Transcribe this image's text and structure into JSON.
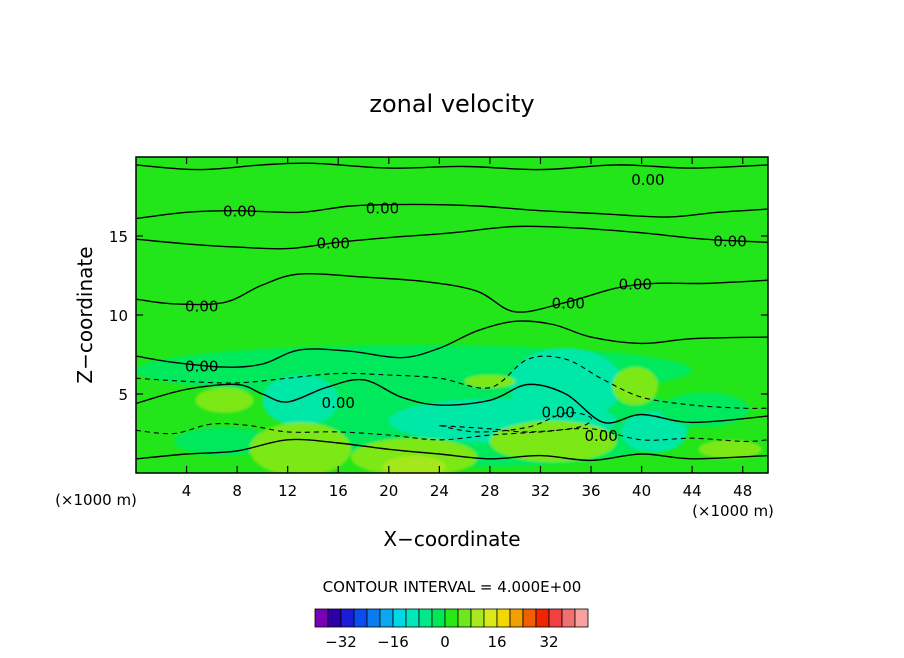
{
  "chart_data": {
    "type": "heatmap",
    "title": "zonal velocity",
    "xlabel": "X−coordinate",
    "ylabel": "Z−coordinate",
    "x_unit_left": "(×1000 m)",
    "x_unit_right": "(×1000 m)",
    "xlim": [
      0,
      50
    ],
    "ylim": [
      0,
      20
    ],
    "x_ticks": [
      4,
      8,
      12,
      16,
      20,
      24,
      28,
      32,
      36,
      40,
      44,
      48
    ],
    "y_ticks": [
      5,
      10,
      15
    ],
    "contour_interval_text": "CONTOUR INTERVAL = 4.000E+00",
    "contour_label": "0.00",
    "contour_labels": [
      {
        "x": 8.2,
        "y": 16.6,
        "text": "0.00"
      },
      {
        "x": 19.5,
        "y": 16.8,
        "text": "0.00"
      },
      {
        "x": 15.6,
        "y": 14.6,
        "text": "0.00"
      },
      {
        "x": 40.5,
        "y": 18.6,
        "text": "0.00"
      },
      {
        "x": 47.0,
        "y": 14.7,
        "text": "0.00"
      },
      {
        "x": 39.5,
        "y": 12.0,
        "text": "0.00"
      },
      {
        "x": 34.2,
        "y": 10.8,
        "text": "0.00"
      },
      {
        "x": 5.2,
        "y": 10.6,
        "text": "0.00"
      },
      {
        "x": 5.2,
        "y": 6.8,
        "text": "0.00"
      },
      {
        "x": 16.0,
        "y": 4.5,
        "text": "0.00"
      },
      {
        "x": 33.4,
        "y": 3.9,
        "text": "0.00"
      },
      {
        "x": 36.8,
        "y": 2.4,
        "text": "0.00"
      }
    ],
    "colorbar": {
      "colors": [
        "#7a00b8",
        "#2c00a8",
        "#1c1cd8",
        "#0a4cf0",
        "#0a7cf0",
        "#0aa8ee",
        "#00d8e8",
        "#00e8b8",
        "#00e888",
        "#00e858",
        "#28e818",
        "#6ce81c",
        "#a8e820",
        "#d8e81a",
        "#f0d800",
        "#f0a000",
        "#f06000",
        "#f02400",
        "#f04040",
        "#f07070",
        "#f8a0a0"
      ],
      "tick_values": [
        -32,
        -16,
        0,
        16,
        32
      ],
      "tick_labels": [
        "−32",
        "−16",
        "0",
        "16",
        "32"
      ],
      "range": [
        -40,
        44
      ]
    },
    "field_colors": {
      "base": "#22e61a",
      "positive_weak": "#7ce818",
      "positive_strong": "#a4e81c",
      "negative_weak": "#00e85c",
      "negative_strong": "#00e8a8"
    },
    "regions": [
      {
        "level": "negative_weak",
        "cx": 22,
        "cy": 6.5,
        "rx": 22,
        "ry": 1.6
      },
      {
        "level": "negative_weak",
        "cx": 28,
        "cy": 3.2,
        "rx": 16,
        "ry": 2.8
      },
      {
        "level": "negative_strong",
        "cx": 29,
        "cy": 3.3,
        "rx": 9,
        "ry": 1.4
      },
      {
        "level": "negative_strong",
        "cx": 34,
        "cy": 5.6,
        "rx": 4.5,
        "ry": 2.3
      },
      {
        "level": "negative_strong",
        "cx": 13,
        "cy": 4.6,
        "rx": 3,
        "ry": 1.6
      },
      {
        "level": "negative_strong",
        "cx": 41,
        "cy": 2.6,
        "rx": 2.6,
        "ry": 1.3
      },
      {
        "level": "negative_weak",
        "cx": 45,
        "cy": 4.0,
        "rx": 3.5,
        "ry": 1.1
      },
      {
        "level": "negative_weak",
        "cx": 7,
        "cy": 2.0,
        "rx": 4,
        "ry": 0.9
      },
      {
        "level": "positive_weak",
        "cx": 13,
        "cy": 1.5,
        "rx": 4,
        "ry": 1.7
      },
      {
        "level": "positive_weak",
        "cx": 22,
        "cy": 1.0,
        "rx": 5,
        "ry": 1.2
      },
      {
        "level": "positive_weak",
        "cx": 33,
        "cy": 2.0,
        "rx": 5,
        "ry": 1.3
      },
      {
        "level": "positive_weak",
        "cx": 7,
        "cy": 4.6,
        "rx": 2.3,
        "ry": 0.8
      },
      {
        "level": "positive_weak",
        "cx": 39.5,
        "cy": 5.5,
        "rx": 1.8,
        "ry": 1.2
      },
      {
        "level": "positive_weak",
        "cx": 47,
        "cy": 1.5,
        "rx": 2.5,
        "ry": 0.6
      },
      {
        "level": "positive_weak",
        "cx": 28,
        "cy": 5.8,
        "rx": 2,
        "ry": 0.4
      },
      {
        "level": "positive_strong",
        "cx": 22,
        "cy": 0.4,
        "rx": 2.5,
        "ry": 0.7
      }
    ],
    "solid_contours": [
      [
        [
          0,
          19.5
        ],
        [
          5,
          19.2
        ],
        [
          10,
          19.5
        ],
        [
          14,
          19.6
        ],
        [
          20,
          19.3
        ],
        [
          26,
          19.4
        ],
        [
          32,
          19.2
        ],
        [
          38,
          19.5
        ],
        [
          44,
          19.3
        ],
        [
          50,
          19.5
        ]
      ],
      [
        [
          0,
          16.1
        ],
        [
          4,
          16.5
        ],
        [
          8,
          16.6
        ],
        [
          13,
          16.5
        ],
        [
          17,
          16.9
        ],
        [
          22,
          17.0
        ],
        [
          27,
          16.9
        ],
        [
          32,
          16.6
        ],
        [
          37,
          16.4
        ],
        [
          42,
          16.2
        ],
        [
          46,
          16.5
        ],
        [
          50,
          16.7
        ]
      ],
      [
        [
          0,
          14.8
        ],
        [
          4,
          14.5
        ],
        [
          8,
          14.3
        ],
        [
          12,
          14.2
        ],
        [
          16,
          14.6
        ],
        [
          20,
          14.9
        ],
        [
          25,
          15.2
        ],
        [
          30,
          15.6
        ],
        [
          35,
          15.5
        ],
        [
          40,
          15.2
        ],
        [
          45,
          14.8
        ],
        [
          50,
          14.6
        ]
      ],
      [
        [
          0,
          11.0
        ],
        [
          3,
          10.7
        ],
        [
          7,
          10.8
        ],
        [
          10,
          11.9
        ],
        [
          13,
          12.6
        ],
        [
          18,
          12.4
        ],
        [
          23,
          12.1
        ],
        [
          27,
          11.5
        ],
        [
          30,
          10.2
        ],
        [
          34,
          10.8
        ],
        [
          38,
          11.7
        ],
        [
          41,
          12.0
        ],
        [
          45,
          12.0
        ],
        [
          50,
          12.2
        ]
      ],
      [
        [
          0,
          7.4
        ],
        [
          3,
          7.0
        ],
        [
          7,
          6.7
        ],
        [
          10,
          6.9
        ],
        [
          13,
          7.8
        ],
        [
          17,
          7.7
        ],
        [
          21,
          7.3
        ],
        [
          24,
          7.9
        ],
        [
          27,
          9.0
        ],
        [
          30,
          9.6
        ],
        [
          33,
          9.4
        ],
        [
          36,
          8.6
        ],
        [
          40,
          8.2
        ],
        [
          44,
          8.5
        ],
        [
          50,
          8.6
        ]
      ],
      [
        [
          0,
          4.4
        ],
        [
          4,
          5.3
        ],
        [
          8,
          5.6
        ],
        [
          10,
          5.0
        ],
        [
          12,
          4.5
        ],
        [
          15,
          5.4
        ],
        [
          18,
          5.9
        ],
        [
          21,
          4.8
        ],
        [
          24,
          4.3
        ],
        [
          28,
          4.6
        ],
        [
          31,
          5.6
        ],
        [
          34,
          5.0
        ],
        [
          37,
          3.2
        ],
        [
          40,
          3.7
        ],
        [
          44,
          3.2
        ],
        [
          50,
          3.6
        ]
      ],
      [
        [
          0,
          0.9
        ],
        [
          4,
          1.2
        ],
        [
          8,
          1.4
        ],
        [
          12,
          2.1
        ],
        [
          16,
          1.9
        ],
        [
          20,
          1.5
        ],
        [
          24,
          1.2
        ],
        [
          28,
          0.9
        ],
        [
          32,
          1.1
        ],
        [
          36,
          0.8
        ],
        [
          40,
          1.2
        ],
        [
          44,
          0.9
        ],
        [
          50,
          1.1
        ]
      ]
    ],
    "dashed_contours": [
      [
        [
          0,
          6.0
        ],
        [
          4,
          5.8
        ],
        [
          8,
          5.7
        ],
        [
          12,
          6.0
        ],
        [
          16,
          6.3
        ],
        [
          20,
          6.2
        ],
        [
          24,
          6.0
        ],
        [
          28,
          5.4
        ],
        [
          31,
          7.2
        ],
        [
          34,
          7.2
        ],
        [
          37,
          5.9
        ],
        [
          40,
          4.8
        ],
        [
          44,
          4.3
        ],
        [
          48,
          4.1
        ],
        [
          50,
          4.1
        ]
      ],
      [
        [
          0,
          2.7
        ],
        [
          3,
          2.5
        ],
        [
          6,
          3.1
        ],
        [
          9,
          3.0
        ],
        [
          12,
          2.6
        ],
        [
          16,
          2.6
        ],
        [
          20,
          2.4
        ],
        [
          24,
          2.1
        ],
        [
          28,
          2.4
        ],
        [
          32,
          2.6
        ],
        [
          36,
          2.8
        ],
        [
          40,
          2.1
        ],
        [
          44,
          2.2
        ],
        [
          48,
          2.0
        ],
        [
          50,
          2.1
        ]
      ],
      [
        [
          24,
          3.0
        ],
        [
          27,
          2.6
        ],
        [
          31,
          2.9
        ],
        [
          34,
          3.8
        ],
        [
          36,
          3.5
        ],
        [
          35,
          2.9
        ],
        [
          31,
          2.6
        ],
        [
          28,
          2.8
        ],
        [
          24,
          3.0
        ]
      ]
    ]
  }
}
